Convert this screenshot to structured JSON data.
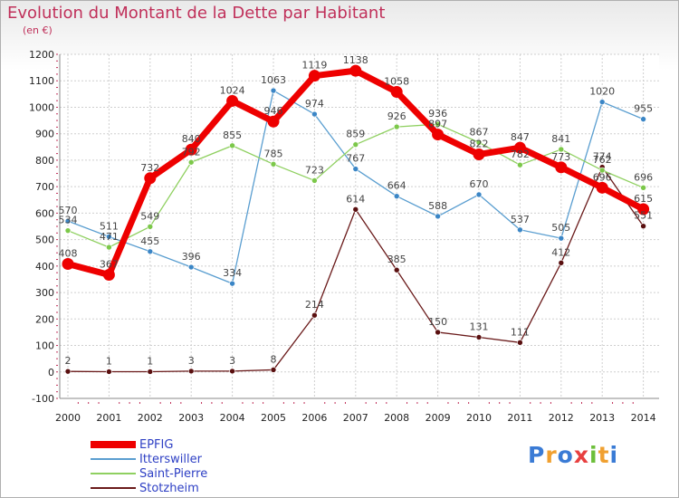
{
  "brand": {
    "letters": [
      {
        "ch": "P",
        "color": "#3a7bd5"
      },
      {
        "ch": "r",
        "color": "#f0a030"
      },
      {
        "ch": "o",
        "color": "#3a7bd5"
      },
      {
        "ch": "x",
        "color": "#e84040"
      },
      {
        "ch": "i",
        "color": "#6cbf3a"
      },
      {
        "ch": "t",
        "color": "#f0a030"
      },
      {
        "ch": "i",
        "color": "#3a7bd5"
      }
    ]
  },
  "chart_data": {
    "type": "line",
    "title": "Evolution du Montant de la Dette par Habitant",
    "subtitle": "(en €)",
    "x": [
      "2000",
      "2001",
      "2002",
      "2003",
      "2004",
      "2005",
      "2006",
      "2007",
      "2008",
      "2009",
      "2010",
      "2011",
      "2012",
      "2013",
      "2014"
    ],
    "ylim": [
      -100,
      1200
    ],
    "yticks": [
      -100,
      0,
      100,
      200,
      300,
      400,
      500,
      600,
      700,
      800,
      900,
      1000,
      1100,
      1200
    ],
    "grid": true,
    "legend_position": "bottom-left",
    "series": [
      {
        "name": "EPFIG",
        "color": "#ee0000",
        "values": [
          408,
          367,
          732,
          840,
          1024,
          946,
          1119,
          1138,
          1058,
          897,
          822,
          847,
          773,
          696,
          615
        ],
        "labels": [
          "408",
          "367",
          "732",
          "840",
          "1024",
          "946",
          "1119",
          "1138",
          "1058",
          "897",
          "822",
          "847",
          "773",
          "696",
          "615"
        ]
      },
      {
        "name": "Itterswiller",
        "color": "#5a9ed0",
        "values": [
          570,
          511,
          455,
          396,
          334,
          1063,
          974,
          767,
          664,
          588,
          670,
          537,
          505,
          1020,
          955
        ],
        "labels": [
          "570",
          "511",
          "455",
          "396",
          "334",
          "1063",
          "974",
          "767",
          "664",
          "588",
          "670",
          "537",
          "505",
          "1020",
          "955"
        ]
      },
      {
        "name": "Saint-Pierre",
        "color": "#8fd060",
        "values": [
          534,
          471,
          549,
          792,
          855,
          785,
          723,
          859,
          926,
          936,
          867,
          782,
          841,
          762,
          696
        ],
        "labels": [
          "534",
          "471",
          "549",
          "792",
          "855",
          "785",
          "723",
          "859",
          "926",
          "936",
          "867",
          "782",
          "841",
          "762",
          "696"
        ]
      },
      {
        "name": "Stotzheim",
        "color": "#6a1a1a",
        "values": [
          2,
          1,
          1,
          3,
          3,
          8,
          214,
          614,
          385,
          150,
          131,
          111,
          412,
          774,
          551
        ],
        "labels": [
          "2",
          "1",
          "1",
          "3",
          "3",
          "8",
          "214",
          "614",
          "385",
          "150",
          "131",
          "111",
          "412",
          "774",
          "551"
        ]
      }
    ]
  }
}
